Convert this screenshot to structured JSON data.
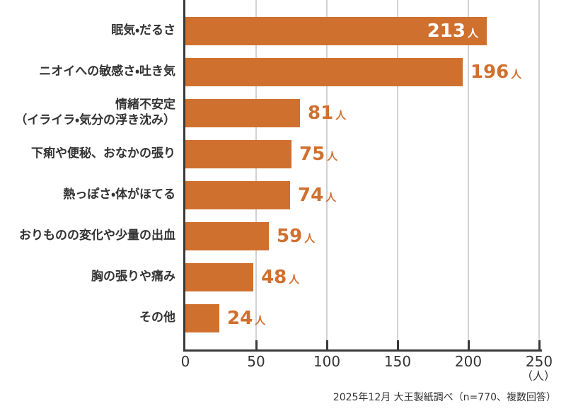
{
  "chart_data": {
    "type": "bar",
    "orientation": "horizontal",
    "categories": [
      "眠気・だるさ",
      "ニオイへの敏感さ・吐き気",
      "情緒不安定（イライラ・気分の浮き沈み）",
      "下痢や便秘、おなかの張り",
      "熱っぽさ・体がほてる",
      "おりものの変化や少量の出血",
      "胸の張りや痛み",
      "その他"
    ],
    "values": [
      213,
      196,
      81,
      75,
      74,
      59,
      48,
      24
    ],
    "value_unit": "人",
    "axis": {
      "min": 0,
      "max": 250,
      "ticks": [
        "0",
        "50",
        "100",
        "150",
        "200",
        "250"
      ],
      "unit_label": "（人）",
      "grid": true
    },
    "rows": [
      {
        "label": "眠気・だるさ",
        "value": 213,
        "unit": "人",
        "value_position": "inside"
      },
      {
        "label": "ニオイへの敏感さ・吐き気",
        "value": 196,
        "unit": "人",
        "value_position": "outside"
      },
      {
        "label": "情緒不安定\n（イライラ・気分の浮き沈み）",
        "value": 81,
        "unit": "人",
        "value_position": "outside"
      },
      {
        "label": "下痢や便秘、おなかの張り",
        "value": 75,
        "unit": "人",
        "value_position": "outside"
      },
      {
        "label": "熱っぽさ・体がほてる",
        "value": 74,
        "unit": "人",
        "value_position": "outside"
      },
      {
        "label": "おりものの変化や少量の出血",
        "value": 59,
        "unit": "人",
        "value_position": "outside"
      },
      {
        "label": "胸の張りや痛み",
        "value": 48,
        "unit": "人",
        "value_position": "outside"
      },
      {
        "label": "その他",
        "value": 24,
        "unit": "人",
        "value_position": "outside"
      }
    ],
    "footnote": "2025年12月 大王製紙調べ（n=770、複数回答）",
    "legend": null,
    "title": ""
  },
  "colors": {
    "bar": "#d0702f",
    "value_label_outside": "#d0702f",
    "value_label_inside": "#ffffff",
    "axis_line": "#3a3a3a",
    "gridline": "#d2d2d2",
    "text": "#333333",
    "background": "#ffffff"
  }
}
